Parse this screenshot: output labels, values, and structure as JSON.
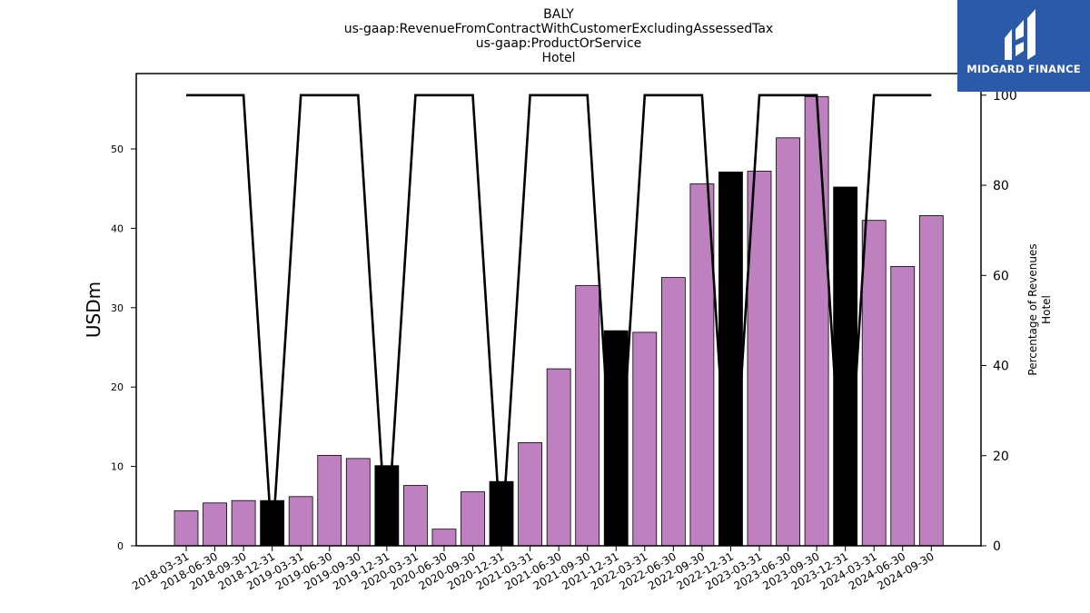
{
  "logo": {
    "text": "MIDGARD FINANCE",
    "icon": "midgard-logo-icon",
    "color": "#2b5aa8"
  },
  "chart_data": {
    "type": "bar",
    "title": [
      "BALY",
      "us-gaap:RevenueFromContractWithCustomerExcludingAssessedTax",
      "us-gaap:ProductOrService",
      "Hotel"
    ],
    "ylabel": "USDm",
    "ylabel_right": [
      "Percentage of Revenues",
      "Hotel"
    ],
    "ylim": [
      0,
      59.5
    ],
    "y_ticks": [
      0,
      10,
      20,
      30,
      40,
      50
    ],
    "y2lim": [
      0,
      104.8
    ],
    "y2_ticks": [
      0,
      20,
      40,
      60,
      80,
      100
    ],
    "categories": [
      "2018-03-31",
      "2018-06-30",
      "2018-09-30",
      "2018-12-31",
      "2019-03-31",
      "2019-06-30",
      "2019-09-30",
      "2019-12-31",
      "2020-03-31",
      "2020-06-30",
      "2020-09-30",
      "2020-12-31",
      "2021-03-31",
      "2021-06-30",
      "2021-09-30",
      "2021-12-31",
      "2022-03-31",
      "2022-06-30",
      "2022-09-30",
      "2022-12-31",
      "2023-03-31",
      "2023-06-30",
      "2023-09-30",
      "2023-12-31",
      "2024-03-31",
      "2024-06-30",
      "2024-09-30"
    ],
    "values": [
      4.4,
      5.4,
      5.7,
      5.7,
      6.2,
      11.4,
      11.0,
      10.1,
      7.6,
      2.1,
      6.8,
      8.1,
      13.0,
      22.3,
      32.8,
      27.1,
      26.9,
      33.8,
      45.6,
      47.1,
      47.2,
      51.4,
      56.6,
      45.2,
      41.0,
      35.2,
      41.6
    ],
    "highlight_indices": [
      3,
      7,
      11,
      15,
      19,
      23
    ],
    "bar_color": "#bf80bf",
    "highlight_color": "#000000",
    "line_series": {
      "values": [
        100,
        100,
        100,
        0,
        100,
        100,
        100,
        0,
        100,
        100,
        100,
        0,
        100,
        100,
        100,
        0,
        100,
        100,
        100,
        0,
        100,
        100,
        100,
        0,
        100,
        100,
        100
      ],
      "color": "#000000"
    },
    "grid": false,
    "legend": "none"
  }
}
